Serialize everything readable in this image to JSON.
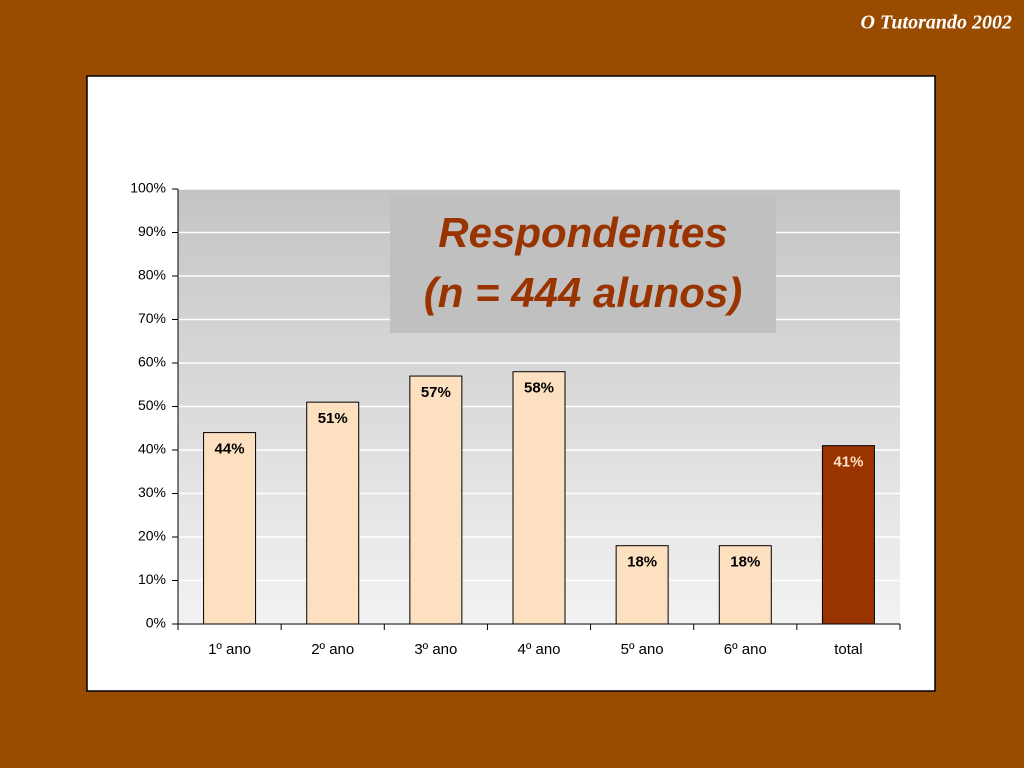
{
  "slide_header": "O Tutorando 2002",
  "chart_data": {
    "type": "bar",
    "title_lines": [
      "Respondentes",
      "(n = 444 alunos)"
    ],
    "categories": [
      "1º ano",
      "2º ano",
      "3º ano",
      "4º ano",
      "5º ano",
      "6º ano",
      "total"
    ],
    "values": [
      44,
      51,
      57,
      58,
      18,
      18,
      41
    ],
    "value_labels": [
      "44%",
      "51%",
      "57%",
      "58%",
      "18%",
      "18%",
      "41%"
    ],
    "colors": [
      "#fde0c0",
      "#fde0c0",
      "#fde0c0",
      "#fde0c0",
      "#fde0c0",
      "#fde0c0",
      "#993300"
    ],
    "label_colors": [
      "#000000",
      "#000000",
      "#000000",
      "#000000",
      "#000000",
      "#000000",
      "#ffe0c0"
    ],
    "ylim": [
      0,
      100
    ],
    "yticks": [
      {
        "value": 0,
        "label": "0%"
      },
      {
        "value": 10,
        "label": "10%"
      },
      {
        "value": 20,
        "label": "20%"
      },
      {
        "value": 30,
        "label": "30%"
      },
      {
        "value": 40,
        "label": "40%"
      },
      {
        "value": 50,
        "label": "50%"
      },
      {
        "value": 60,
        "label": "60%"
      },
      {
        "value": 70,
        "label": "70%"
      },
      {
        "value": 80,
        "label": "80%"
      },
      {
        "value": 90,
        "label": "90%"
      },
      {
        "value": 100,
        "label": "100%"
      }
    ],
    "grid": true
  }
}
